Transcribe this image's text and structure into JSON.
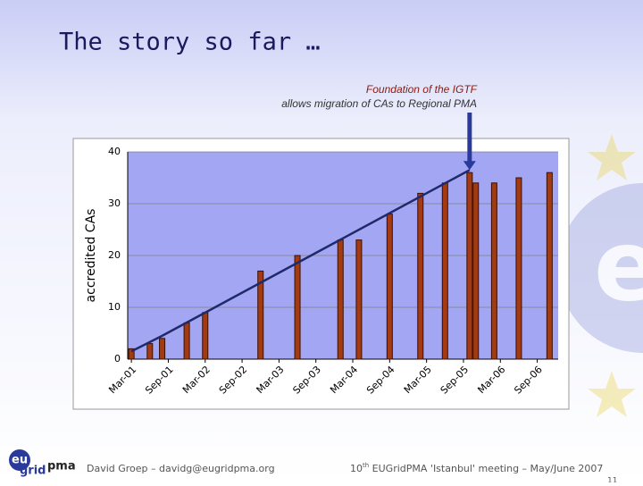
{
  "slide": {
    "title": "The story so far …",
    "footer_author": "David Groep – davidg@eugridpma.org",
    "footer_meeting_num": "10",
    "footer_meeting_sup": "th",
    "footer_meeting_rest": " EUGridPMA 'Istanbul' meeting – May/June 2007",
    "page": "11",
    "logo_eu": "eu",
    "logo_grid": "grid",
    "logo_pma": "pma"
  },
  "chart_data": {
    "type": "bar",
    "annotation": [
      "Foundation of the IGTF",
      "allows migration of CAs to Regional PMA"
    ],
    "y_label": "accredited CAs",
    "xlim": [
      -0.6,
      69.4
    ],
    "xticks": [
      {
        "value": 0,
        "label": "Mar-01"
      },
      {
        "value": 6,
        "label": "Sep-01"
      },
      {
        "value": 12,
        "label": "Mar-02"
      },
      {
        "value": 18,
        "label": "Sep-02"
      },
      {
        "value": 24,
        "label": "Mar-03"
      },
      {
        "value": 30,
        "label": "Sep-03"
      },
      {
        "value": 36,
        "label": "Mar-04"
      },
      {
        "value": 42,
        "label": "Sep-04"
      },
      {
        "value": 48,
        "label": "Mar-05"
      },
      {
        "value": 54,
        "label": "Sep-05"
      },
      {
        "value": 60,
        "label": "Mar-06"
      },
      {
        "value": 66,
        "label": "Sep-06"
      }
    ],
    "ylim": [
      0,
      40
    ],
    "yticks": [
      0,
      10,
      20,
      30,
      40
    ],
    "grid": true,
    "bars": {
      "color": "#a33a12",
      "x": [
        0,
        3,
        5,
        9,
        12,
        21,
        27,
        34,
        37,
        42,
        47,
        51,
        55,
        56,
        59,
        63,
        68
      ],
      "values": [
        2,
        3,
        4,
        7,
        9,
        17,
        20,
        23,
        23,
        28,
        32,
        34,
        36,
        34,
        34,
        35,
        36
      ]
    },
    "trend": {
      "color": "#1f2a6b",
      "x": [
        0,
        5,
        55
      ],
      "values": [
        1.5,
        4.5,
        36.5
      ]
    }
  }
}
